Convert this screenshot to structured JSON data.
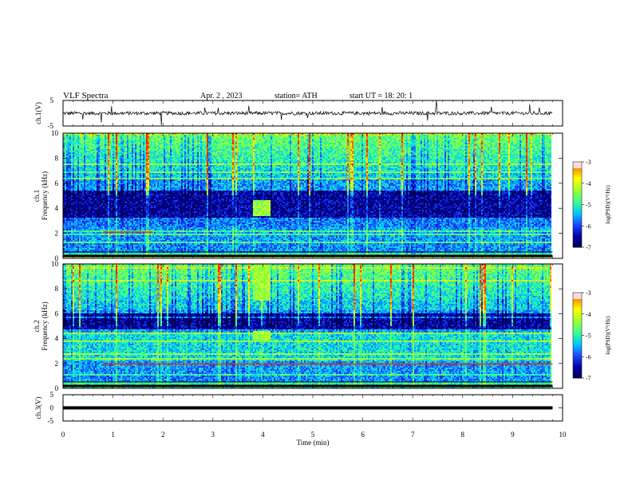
{
  "header": {
    "title": "VLF  Spectra",
    "date": "Apr. 2  , 2023",
    "station": "station= ATH",
    "start_ut": "start  UT  =    18: 20: 1"
  },
  "chart_data": [
    {
      "type": "line",
      "panel": "ch1-waveform",
      "ylabel": "ch.1(V)",
      "ylim": [
        -5,
        5
      ],
      "yticks": [
        "5",
        "-5"
      ],
      "xlim": [
        0,
        10
      ],
      "series": [
        {
          "x_range": [
            0,
            9.8
          ],
          "level": 0,
          "noise": "dense waveform with sporadic spikes"
        }
      ]
    },
    {
      "type": "heatmap",
      "panel": "ch1-spectrogram",
      "ylabel": "ch.1\nFrequency  (kHz)",
      "ylim": [
        0,
        10
      ],
      "yticks": [
        "0",
        "2",
        "4",
        "6",
        "8",
        "10"
      ],
      "xlim": [
        0,
        10
      ],
      "data_x_range": [
        0,
        9.8
      ],
      "features": {
        "quiet_band_khz": [
          3.3,
          5.4
        ],
        "burst_time_min": [
          3.8,
          4.15
        ],
        "burst_freq_khz": [
          3.4,
          4.7
        ],
        "strong_line_khz": 2.1,
        "strong_line_time_min": [
          0.8,
          1.8
        ]
      }
    },
    {
      "type": "heatmap",
      "panel": "ch2-spectrogram",
      "ylabel": "ch.2\nFrequency  (kHz)",
      "ylim": [
        0,
        10
      ],
      "yticks": [
        "0",
        "2",
        "4",
        "6",
        "8",
        "10"
      ],
      "xlim": [
        0,
        10
      ],
      "data_x_range": [
        0,
        9.8
      ],
      "features": {
        "quiet_band_khz": [
          4.7,
          6.0
        ],
        "burst_time_min": [
          3.8,
          4.15
        ],
        "burst_freq_khz": [
          3.7,
          4.6
        ],
        "strong_line_khz": 1.95,
        "strong_line_time_min": [
          0.8,
          9.8
        ]
      }
    },
    {
      "type": "line",
      "panel": "ch3-waveform",
      "ylabel": "ch.3(V)",
      "ylim": [
        -5,
        5
      ],
      "yticks": [
        "5",
        "0",
        "-5"
      ],
      "xlim": [
        0,
        10
      ],
      "xlabel": "Time  (min)",
      "xticks": [
        "0",
        "1",
        "2",
        "3",
        "4",
        "5",
        "6",
        "7",
        "8",
        "9",
        "10"
      ],
      "series": [
        {
          "x_range": [
            0,
            9.8
          ],
          "level": 0,
          "noise": "flat thick trace"
        }
      ]
    }
  ],
  "colorbars": [
    {
      "label": "log(PSD)(V²/Hz)",
      "ticks": [
        "-3",
        "-4",
        "-5",
        "-6",
        "-7"
      ],
      "range": [
        -7,
        -3
      ]
    },
    {
      "label": "log(PSD)(V²/Hz)",
      "ticks": [
        "-3",
        "-4",
        "-5",
        "-6",
        "-7"
      ],
      "range": [
        -7,
        -3
      ]
    }
  ],
  "colors": {
    "dark": "#000050",
    "mid_blue": "#1e46ff",
    "cyan": "#00c8ff",
    "green": "#78ff50",
    "yellow": "#ffff00",
    "red": "#ff1e00",
    "light_red": "#ffdcdc"
  }
}
